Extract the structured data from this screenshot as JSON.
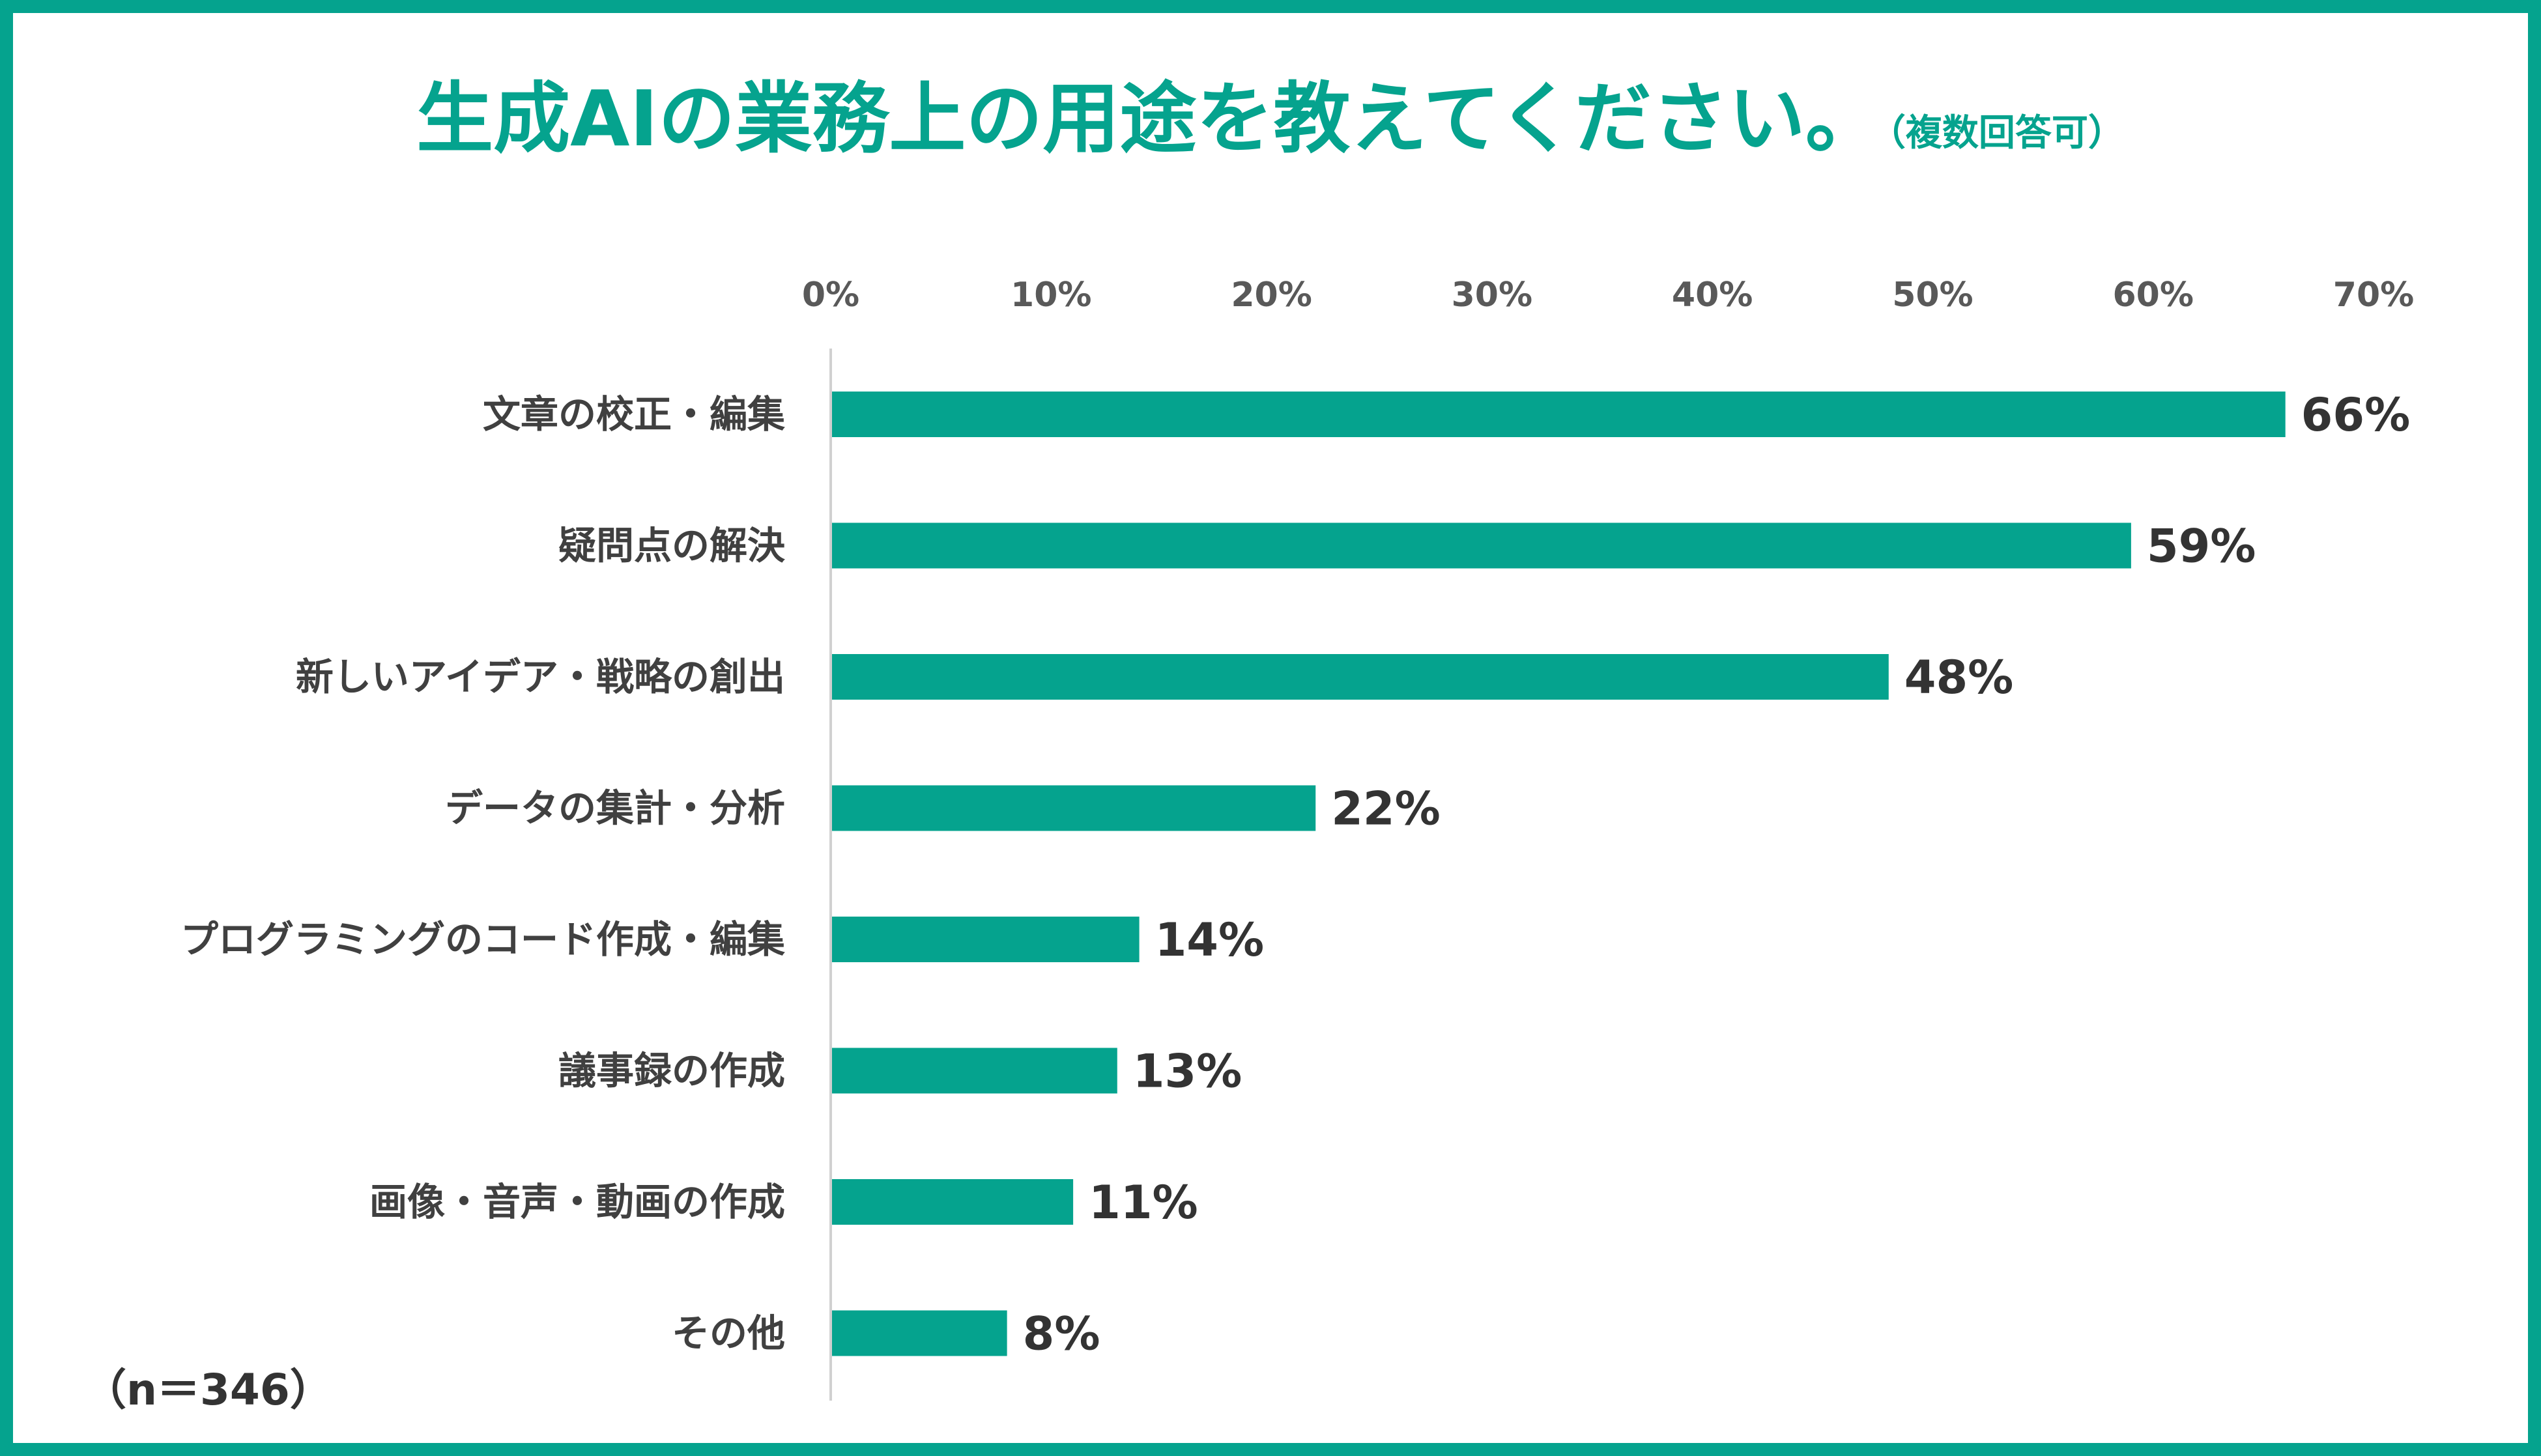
{
  "title": "生成AIの業務上の用途を教えてください。",
  "subtitle": "（複数回答可）",
  "note": "（n＝346）",
  "colors": {
    "frame": "#05a38e",
    "bar": "#05a38e",
    "title": "#05a38e"
  },
  "chart_data": {
    "type": "bar",
    "orientation": "horizontal",
    "categories": [
      "文章の校正・編集",
      "疑問点の解決",
      "新しいアイデア・戦略の創出",
      "データの集計・分析",
      "プログラミングのコード作成・編集",
      "議事録の作成",
      "画像・音声・動画の作成",
      "その他"
    ],
    "values": [
      66,
      59,
      48,
      22,
      14,
      13,
      11,
      8
    ],
    "value_labels": [
      "66%",
      "59%",
      "48%",
      "22%",
      "14%",
      "13%",
      "11%",
      "8%"
    ],
    "ticks": [
      0,
      10,
      20,
      30,
      40,
      50,
      60,
      70
    ],
    "tick_labels": [
      "0%",
      "10%",
      "20%",
      "30%",
      "40%",
      "50%",
      "60%",
      "70%"
    ],
    "xlim": [
      0,
      70
    ],
    "axis_position": "top",
    "grid": false,
    "legend": "none"
  }
}
